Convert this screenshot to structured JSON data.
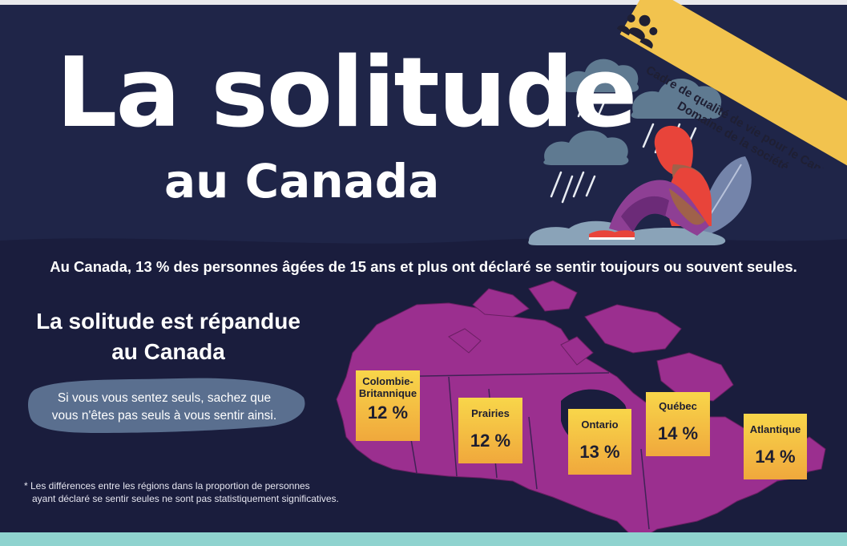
{
  "title": "La solitude",
  "subtitle": "au Canada",
  "ribbon": {
    "line1": "Cadre de qualité de vie pour le Canada",
    "line2": "Domaine de la société",
    "icon": "people-group-icon"
  },
  "headline": "Au Canada, 13 % des personnes âgées de 15 ans et plus ont déclaré se sentir toujours ou souvent seules.",
  "section": {
    "title_line1": "La solitude est répandue",
    "title_line2": "au Canada"
  },
  "bubble": {
    "line1": "Si vous vous sentez seuls, sachez que",
    "line2": "vous n'êtes pas seuls à vous sentir ainsi."
  },
  "footnote": {
    "line1": "* Les différences entre les régions dans la proportion de personnes",
    "line2": "ayant déclaré se sentir seules ne sont pas statistiquement significatives."
  },
  "regions": [
    {
      "name_line1": "Colombie-",
      "name_line2": "Britannique",
      "value": "12 %"
    },
    {
      "name_line1": "Prairies",
      "name_line2": "",
      "value": "12 %"
    },
    {
      "name_line1": "Ontario",
      "name_line2": "",
      "value": "13 %"
    },
    {
      "name_line1": "Québec",
      "name_line2": "",
      "value": "14 %"
    },
    {
      "name_line1": "Atlantique",
      "name_line2": "",
      "value": "14 %"
    }
  ],
  "colors": {
    "background": "#1a1d3d",
    "top_band": "#1f2548",
    "map": "#9b2f8f",
    "ribbon": "#f2c34e",
    "box_top": "#f8d64a",
    "box_bottom": "#f0a83c",
    "bottom_band": "#8fd3cf"
  }
}
